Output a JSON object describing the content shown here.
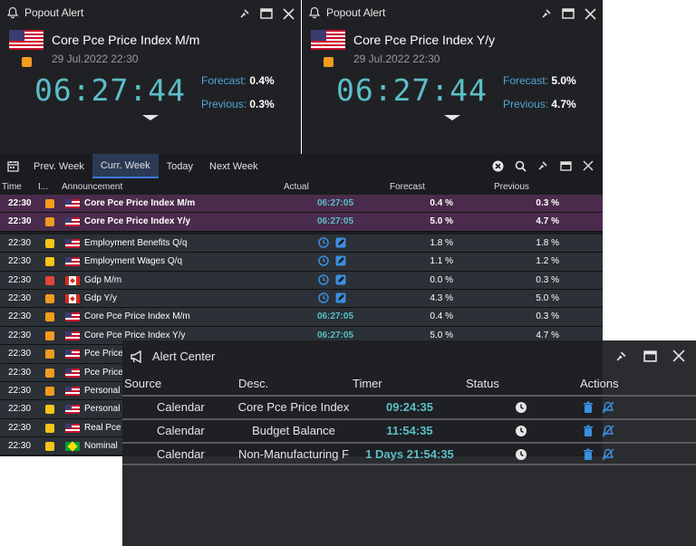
{
  "popouts": [
    {
      "title": "Popout Alert",
      "event": "Core Pce Price Index M/m",
      "date": "29 Jul.2022 22:30",
      "timer": "06:27:44",
      "forecast_label": "Forecast:",
      "forecast_value": "0.4%",
      "previous_label": "Previous:",
      "previous_value": "0.3%",
      "importance_color": "#f39c1e"
    },
    {
      "title": "Popout Alert",
      "event": "Core Pce Price Index Y/y",
      "date": "29 Jul.2022 22:30",
      "timer": "06:27:44",
      "forecast_label": "Forecast:",
      "forecast_value": "5.0%",
      "previous_label": "Previous:",
      "previous_value": "4.7%",
      "importance_color": "#f39c1e"
    }
  ],
  "calendar": {
    "tabs": [
      "Prev. Week",
      "Curr. Week",
      "Today",
      "Next Week"
    ],
    "active_tab": "Curr. Week",
    "columns": {
      "time": "Time",
      "importance": "I...",
      "announcement": "Announcement",
      "actual": "Actual",
      "forecast": "Forecast",
      "previous": "Previous"
    },
    "rows": [
      {
        "time": "22:30",
        "importance": "#f39c1e",
        "country": "us",
        "announcement": "Core Pce Price Index M/m",
        "actual": "06:27:05",
        "forecast": "0.4 %",
        "previous": "0.3 %",
        "style": "highlight"
      },
      {
        "time": "22:30",
        "importance": "#f39c1e",
        "country": "us",
        "announcement": "Core Pce Price Index Y/y",
        "actual": "06:27:05",
        "forecast": "5.0 %",
        "previous": "4.7 %",
        "style": "highlight"
      },
      {
        "time": "22:30",
        "importance": "#f5c518",
        "country": "us",
        "announcement": "Employment Benefits Q/q",
        "actual": "",
        "forecast": "1.8 %",
        "previous": "1.8 %",
        "style": "normal",
        "icons": true
      },
      {
        "time": "22:30",
        "importance": "#f5c518",
        "country": "us",
        "announcement": "Employment Wages Q/q",
        "actual": "",
        "forecast": "1.1 %",
        "previous": "1.2 %",
        "style": "normal",
        "icons": true
      },
      {
        "time": "22:30",
        "importance": "#e5443a",
        "country": "ca",
        "announcement": "Gdp M/m",
        "actual": "",
        "forecast": "0.0 %",
        "previous": "0.3 %",
        "style": "normal",
        "icons": true
      },
      {
        "time": "22:30",
        "importance": "#f39c1e",
        "country": "ca",
        "announcement": "Gdp Y/y",
        "actual": "",
        "forecast": "4.3 %",
        "previous": "5.0 %",
        "style": "normal",
        "icons": true
      },
      {
        "time": "22:30",
        "importance": "#f39c1e",
        "country": "us",
        "announcement": "Core Pce Price Index M/m",
        "actual": "06:27:05",
        "forecast": "0.4 %",
        "previous": "0.3 %",
        "style": "normal"
      },
      {
        "time": "22:30",
        "importance": "#f39c1e",
        "country": "us",
        "announcement": "Core Pce Price Index Y/y",
        "actual": "06:27:05",
        "forecast": "5.0 %",
        "previous": "4.7 %",
        "style": "normal"
      },
      {
        "time": "22:30",
        "importance": "#f39c1e",
        "country": "us",
        "announcement": "Pce Price",
        "actual": "",
        "forecast": "",
        "previous": "",
        "style": "normal"
      },
      {
        "time": "22:30",
        "importance": "#f39c1e",
        "country": "us",
        "announcement": "Pce Price",
        "actual": "",
        "forecast": "",
        "previous": "",
        "style": "normal"
      },
      {
        "time": "22:30",
        "importance": "#f39c1e",
        "country": "us",
        "announcement": "Personal",
        "actual": "",
        "forecast": "",
        "previous": "",
        "style": "normal"
      },
      {
        "time": "22:30",
        "importance": "#f5c518",
        "country": "us",
        "announcement": "Personal",
        "actual": "",
        "forecast": "",
        "previous": "",
        "style": "normal"
      },
      {
        "time": "22:30",
        "importance": "#f5c518",
        "country": "us",
        "announcement": "Real Pce",
        "actual": "",
        "forecast": "",
        "previous": "",
        "style": "normal"
      },
      {
        "time": "22:30",
        "importance": "#f5c518",
        "country": "br",
        "announcement": "Nominal",
        "actual": "",
        "forecast": "",
        "previous": "",
        "style": "normal"
      }
    ]
  },
  "alert_center": {
    "title": "Alert Center",
    "columns": {
      "source": "Source",
      "desc": "Desc.",
      "timer": "Timer",
      "status": "Status",
      "actions": "Actions"
    },
    "rows": [
      {
        "source": "Calendar",
        "desc": "Core Pce Price Index",
        "timer": "09:24:35"
      },
      {
        "source": "Calendar",
        "desc": "Budget Balance",
        "timer": "11:54:35"
      },
      {
        "source": "Calendar",
        "desc": "Non-Manufacturing F",
        "timer": "1 Days 21:54:35"
      }
    ]
  },
  "colors": {
    "accent_teal": "#5bbec7",
    "label_blue": "#4ea6d8",
    "highlight_row": "#4a2b4b",
    "normal_row": "#2b3137",
    "action_blue": "#3b8fe0"
  }
}
